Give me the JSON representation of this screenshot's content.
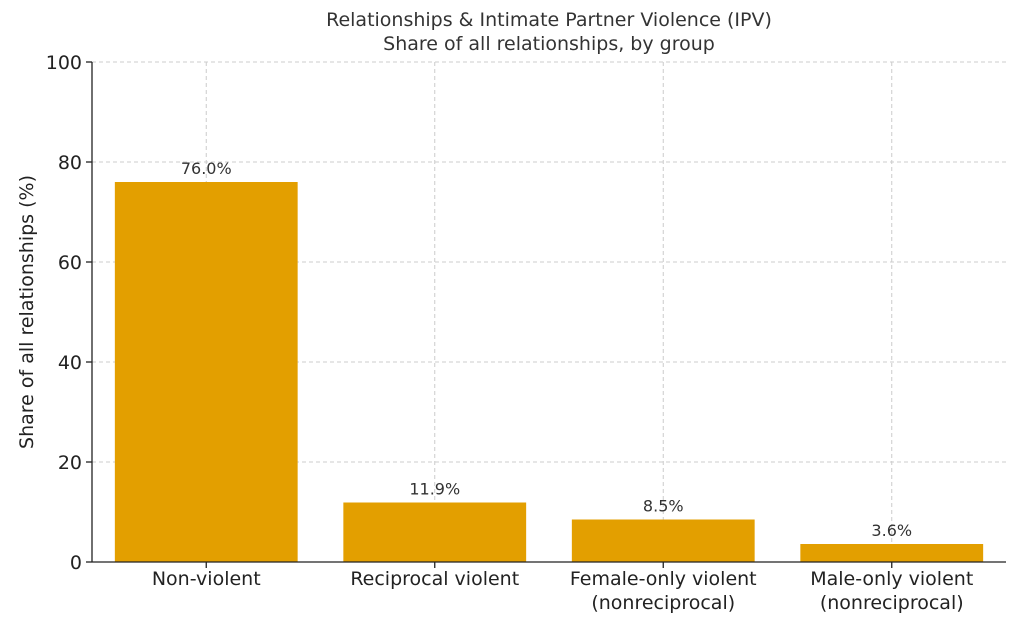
{
  "chart_data": {
    "type": "bar",
    "title": "Relationships & Intimate Partner Violence (IPV)",
    "subtitle": "Share of all relationships, by group",
    "xlabel": "",
    "ylabel": "Share of all relationships (%)",
    "ylim": [
      0,
      100
    ],
    "yticks": [
      "0",
      "20",
      "40",
      "60",
      "80",
      "100"
    ],
    "categories": [
      [
        "Non-violent"
      ],
      [
        "Reciprocal violent"
      ],
      [
        "Female-only violent",
        "(nonreciprocal)"
      ],
      [
        "Male-only violent",
        "(nonreciprocal)"
      ]
    ],
    "values": [
      76.0,
      11.9,
      8.5,
      3.6
    ],
    "data_labels": [
      "76.0%",
      "11.9%",
      "8.5%",
      "3.6%"
    ],
    "bar_color": "#E39F00",
    "grid": true
  }
}
